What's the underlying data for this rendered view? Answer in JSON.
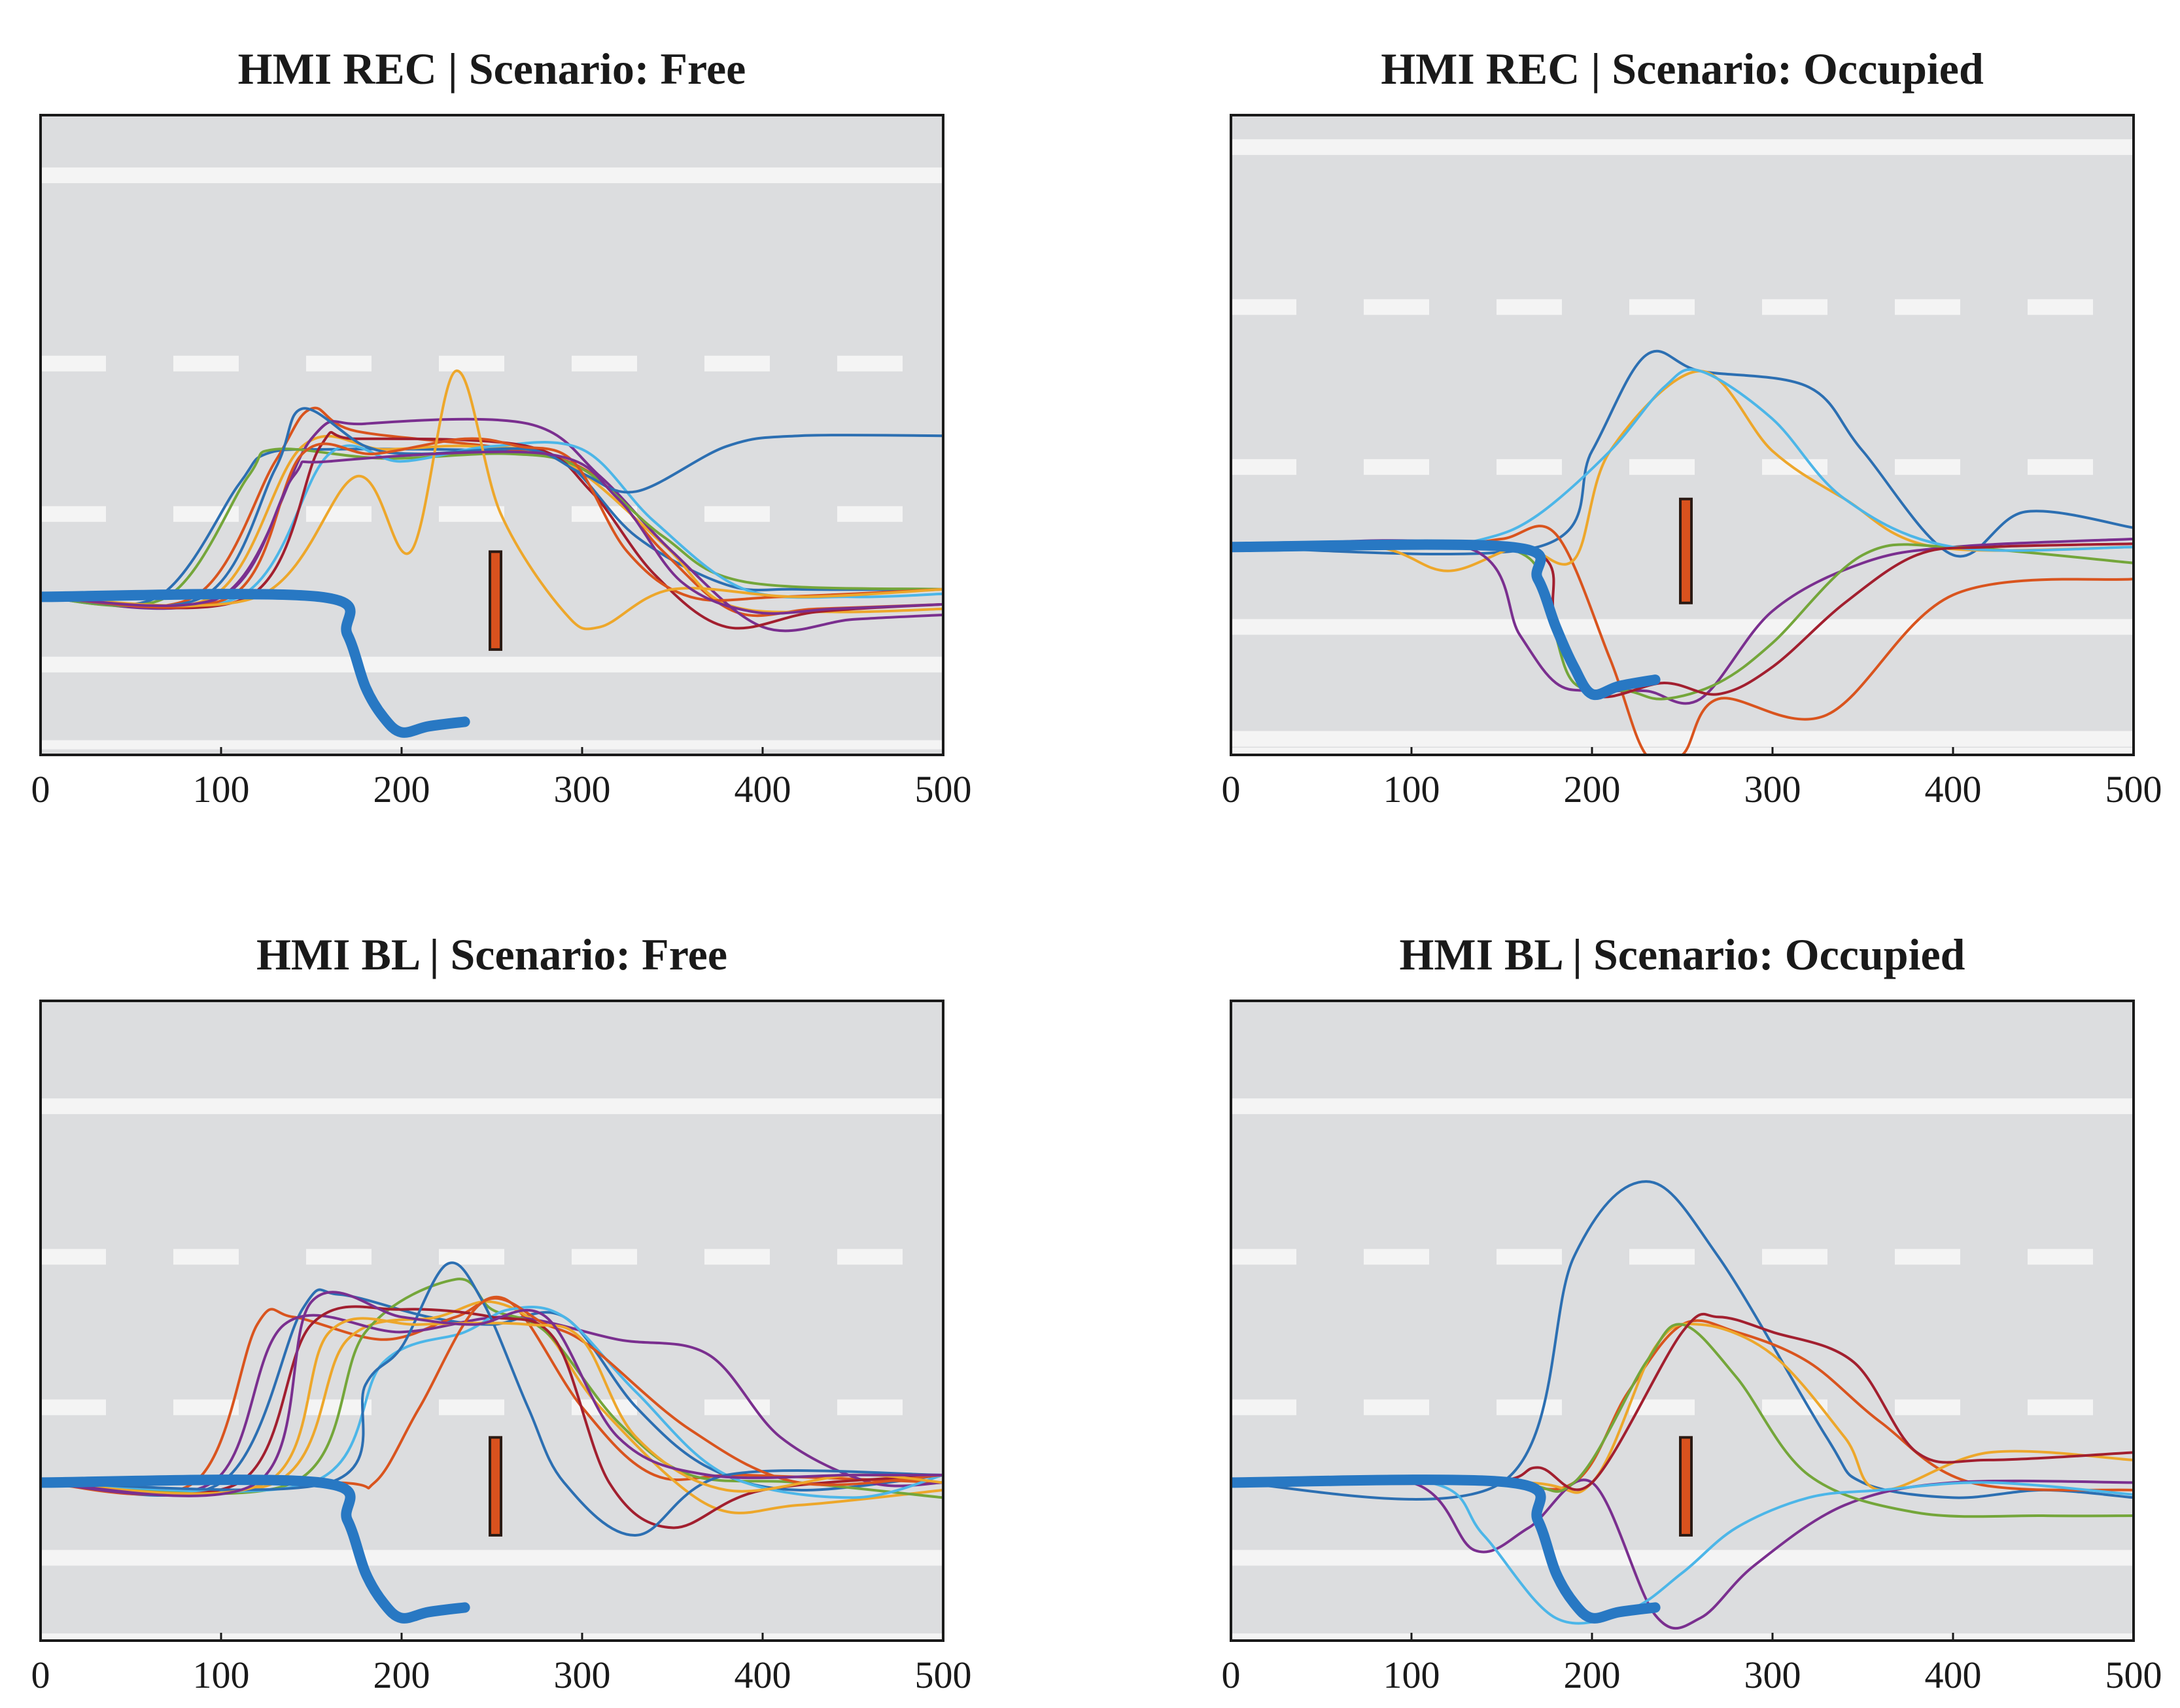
{
  "colors": {
    "road": "#dcdddf",
    "marking": "#f4f4f4",
    "frame": "#1a1a1a",
    "ego": "#2878c3",
    "obstacle_fill": "#d9521e",
    "obstacle_edge": "#2a1a14",
    "palette": [
      "#2c6fb2",
      "#d9541e",
      "#eda72b",
      "#7a2f8f",
      "#74a63a",
      "#4cb6e8",
      "#a21f2f"
    ]
  },
  "chart_data": [
    {
      "type": "line",
      "title": "HMI REC | Scenario: Free",
      "xlim": [
        0,
        500
      ],
      "ylim": [
        -1.05,
        3.2
      ],
      "xticks": [
        "0",
        "100",
        "200",
        "300",
        "400",
        "500"
      ],
      "lane_markings": {
        "solid": [
          -0.45,
          2.8
        ],
        "dashed": [
          0.55,
          1.55
        ],
        "bottom_edge": -1.0
      },
      "obstacle": {
        "x": 252,
        "y": [
          -0.35,
          0.3
        ]
      },
      "ego": {
        "x": [
          0,
          155,
          170,
          180,
          190,
          200,
          215,
          235
        ],
        "y": [
          0,
          0,
          -0.25,
          -0.6,
          -0.8,
          -0.9,
          -0.86,
          -0.83
        ]
      },
      "series": [
        {
          "x": [
            0,
            65,
            110,
            125,
            160,
            250,
            290,
            330,
            380,
            420,
            500
          ],
          "y": [
            0,
            0,
            0.75,
            0.95,
            0.98,
            0.97,
            0.9,
            0.4,
            0.08,
            0.05,
            0.05
          ]
        },
        {
          "x": [
            0,
            85,
            130,
            150,
            175,
            260,
            305,
            345,
            385,
            430,
            500
          ],
          "y": [
            0,
            0,
            0.9,
            1.25,
            1.1,
            0.98,
            0.82,
            0.3,
            -0.1,
            -0.08,
            -0.05
          ]
        },
        {
          "x": [
            0,
            95,
            145,
            190,
            240,
            290,
            345,
            380,
            440,
            500
          ],
          "y": [
            0,
            0,
            1.0,
            0.98,
            1.0,
            0.9,
            0.35,
            -0.05,
            -0.1,
            -0.08
          ]
        },
        {
          "x": [
            0,
            100,
            150,
            180,
            270,
            310,
            350,
            400,
            450,
            500
          ],
          "y": [
            0,
            0,
            1.05,
            1.15,
            1.15,
            0.8,
            0.3,
            -0.2,
            -0.15,
            -0.12
          ]
        },
        {
          "x": [
            0,
            70,
            115,
            130,
            190,
            260,
            300,
            345,
            390,
            500
          ],
          "y": [
            0,
            0,
            0.8,
            0.98,
            0.92,
            0.95,
            0.85,
            0.4,
            0.1,
            0.05
          ]
        },
        {
          "x": [
            0,
            110,
            160,
            200,
            250,
            300,
            340,
            390,
            450,
            500
          ],
          "y": [
            0,
            0,
            0.95,
            0.9,
            1.0,
            0.98,
            0.5,
            0.05,
            0.0,
            0.02
          ]
        },
        {
          "x": [
            0,
            115,
            155,
            175,
            270,
            305,
            340,
            380,
            430,
            500
          ],
          "y": [
            0,
            0,
            1.0,
            1.05,
            1.0,
            0.7,
            0.15,
            -0.2,
            -0.1,
            -0.05
          ]
        },
        {
          "x": [
            0,
            90,
            130,
            145,
            180,
            210,
            270,
            300,
            330,
            380,
            420,
            500
          ],
          "y": [
            0,
            0,
            0.85,
            1.25,
            1.0,
            0.95,
            0.98,
            0.82,
            0.7,
            1.0,
            1.07,
            1.07
          ]
        },
        {
          "x": [
            0,
            105,
            145,
            185,
            235,
            265,
            295,
            325,
            360,
            410,
            500
          ],
          "y": [
            0,
            0,
            0.95,
            0.95,
            1.05,
            1.0,
            0.9,
            0.3,
            0.0,
            0.0,
            0.05
          ]
        },
        {
          "x": [
            0,
            120,
            175,
            205,
            230,
            255,
            290,
            310,
            350,
            420,
            500
          ],
          "y": [
            0,
            0,
            0.8,
            0.3,
            1.5,
            0.55,
            -0.1,
            -0.2,
            0.05,
            0.0,
            0.05
          ]
        },
        {
          "x": [
            0,
            100,
            140,
            160,
            280,
            320,
            355,
            395,
            440,
            500
          ],
          "y": [
            0,
            0,
            0.8,
            0.9,
            0.95,
            0.65,
            0.1,
            -0.1,
            -0.08,
            -0.05
          ]
        }
      ]
    },
    {
      "type": "line",
      "title": "HMI REC | Scenario: Occupied",
      "xlim": [
        0,
        500
      ],
      "ylim": [
        -1.3,
        2.7
      ],
      "xticks": [
        "0",
        "100",
        "200",
        "300",
        "400",
        "500"
      ],
      "lane_markings": {
        "solid": [
          -0.5,
          -1.2,
          2.5
        ],
        "dashed": [
          0.5,
          1.5
        ],
        "bottom_edge": -1.3
      },
      "obstacle": {
        "x": 252,
        "y": [
          -0.35,
          0.3
        ]
      },
      "ego": {
        "x": [
          0,
          155,
          170,
          180,
          190,
          200,
          215,
          235
        ],
        "y": [
          0,
          0,
          -0.2,
          -0.5,
          -0.75,
          -0.92,
          -0.87,
          -0.83
        ]
      },
      "series": [
        {
          "x": [
            0,
            170,
            200,
            230,
            260,
            320,
            350,
            400,
            440,
            500
          ],
          "y": [
            0,
            0,
            0.6,
            1.2,
            1.1,
            1.0,
            0.6,
            -0.05,
            0.22,
            0.12
          ]
        },
        {
          "x": [
            0,
            110,
            150,
            180,
            210,
            230,
            250,
            270,
            330,
            400,
            500
          ],
          "y": [
            0,
            0,
            0.05,
            0.08,
            -0.7,
            -1.3,
            -1.3,
            -0.95,
            -1.05,
            -0.3,
            -0.2
          ]
        },
        {
          "x": [
            0,
            80,
            120,
            160,
            190,
            210,
            260,
            300,
            340,
            390,
            500
          ],
          "y": [
            0,
            0,
            -0.15,
            0.0,
            -0.08,
            0.6,
            1.1,
            0.6,
            0.3,
            0.0,
            0.0
          ]
        },
        {
          "x": [
            0,
            130,
            160,
            180,
            200,
            230,
            260,
            300,
            350,
            400,
            500
          ],
          "y": [
            0,
            0,
            -0.55,
            -0.85,
            -0.9,
            -0.9,
            -0.95,
            -0.4,
            -0.1,
            0.0,
            0.05
          ]
        },
        {
          "x": [
            0,
            150,
            175,
            190,
            220,
            240,
            270,
            300,
            350,
            400,
            500
          ],
          "y": [
            0,
            0,
            -0.4,
            -0.85,
            -0.9,
            -0.95,
            -0.85,
            -0.6,
            -0.05,
            0.0,
            -0.1
          ]
        },
        {
          "x": [
            0,
            100,
            140,
            170,
            210,
            240,
            260,
            300,
            340,
            400,
            500
          ],
          "y": [
            0,
            0,
            0.05,
            0.2,
            0.6,
            1.0,
            1.1,
            0.8,
            0.3,
            0.0,
            0.0
          ]
        },
        {
          "x": [
            0,
            160,
            180,
            200,
            240,
            270,
            300,
            340,
            380,
            420,
            500
          ],
          "y": [
            0,
            0,
            -0.45,
            -0.92,
            -0.85,
            -0.92,
            -0.75,
            -0.35,
            -0.05,
            0.0,
            0.02
          ]
        }
      ]
    },
    {
      "type": "line",
      "title": "HMI BL | Scenario: Free",
      "xlim": [
        0,
        500
      ],
      "ylim": [
        -1.05,
        3.2
      ],
      "xticks": [
        "0",
        "100",
        "200",
        "300",
        "400",
        "500"
      ],
      "lane_markings": {
        "solid": [
          -0.5,
          2.5
        ],
        "dashed": [
          0.5,
          1.5
        ],
        "bottom_edge": -1.05
      },
      "obstacle": {
        "x": 252,
        "y": [
          -0.35,
          0.3
        ]
      },
      "ego": {
        "x": [
          0,
          155,
          170,
          180,
          190,
          200,
          215,
          235
        ],
        "y": [
          0,
          0,
          -0.25,
          -0.6,
          -0.8,
          -0.9,
          -0.86,
          -0.83
        ]
      },
      "series": [
        {
          "x": [
            0,
            100,
            145,
            165,
            215,
            250,
            290,
            330,
            370,
            420,
            500
          ],
          "y": [
            0,
            0,
            1.15,
            1.25,
            1.1,
            1.05,
            1.1,
            0.5,
            0.1,
            -0.05,
            0.05
          ]
        },
        {
          "x": [
            0,
            85,
            120,
            140,
            190,
            230,
            260,
            300,
            340,
            390,
            500
          ],
          "y": [
            0,
            0,
            1.05,
            1.1,
            0.95,
            1.1,
            1.2,
            0.5,
            0.05,
            0.05,
            0.0
          ]
        },
        {
          "x": [
            0,
            130,
            170,
            220,
            250,
            280,
            310,
            370,
            420,
            500
          ],
          "y": [
            0,
            0,
            0.95,
            1.1,
            1.2,
            1.0,
            0.5,
            -0.15,
            -0.15,
            -0.05
          ]
        },
        {
          "x": [
            0,
            95,
            135,
            200,
            260,
            320,
            370,
            410,
            460,
            500
          ],
          "y": [
            0,
            0,
            1.05,
            1.0,
            1.1,
            0.95,
            0.85,
            0.3,
            0.0,
            0.0
          ]
        },
        {
          "x": [
            0,
            140,
            180,
            230,
            250,
            280,
            320,
            360,
            420,
            500
          ],
          "y": [
            0,
            0,
            1.0,
            1.35,
            1.15,
            1.0,
            0.4,
            0.05,
            0.0,
            -0.1
          ]
        },
        {
          "x": [
            0,
            150,
            190,
            235,
            260,
            290,
            330,
            380,
            450,
            500
          ],
          "y": [
            0,
            0,
            0.8,
            1.0,
            1.15,
            1.1,
            0.6,
            0.05,
            -0.1,
            0.05
          ]
        },
        {
          "x": [
            0,
            110,
            150,
            200,
            250,
            285,
            315,
            350,
            400,
            500
          ],
          "y": [
            0,
            0,
            1.05,
            1.15,
            1.1,
            0.95,
            0.0,
            -0.3,
            -0.05,
            0.05
          ]
        },
        {
          "x": [
            0,
            160,
            180,
            200,
            225,
            245,
            270,
            290,
            330,
            380,
            500
          ],
          "y": [
            0,
            0,
            0.65,
            0.9,
            1.45,
            1.2,
            0.5,
            0.0,
            -0.35,
            0.05,
            0.05
          ]
        },
        {
          "x": [
            0,
            160,
            185,
            210,
            245,
            280,
            305,
            360,
            420,
            500
          ],
          "y": [
            0,
            0,
            0.0,
            0.5,
            1.2,
            1.05,
            0.9,
            0.35,
            0.0,
            0.05
          ]
        },
        {
          "x": [
            0,
            125,
            160,
            210,
            270,
            300,
            330,
            380,
            450,
            500
          ],
          "y": [
            0,
            0,
            1.0,
            1.05,
            1.05,
            0.95,
            0.3,
            -0.05,
            0.05,
            0.0
          ]
        },
        {
          "x": [
            0,
            120,
            150,
            200,
            240,
            280,
            320,
            370,
            450,
            500
          ],
          "y": [
            0,
            0,
            1.2,
            1.1,
            1.05,
            1.1,
            0.3,
            0.05,
            0.05,
            0.05
          ]
        }
      ]
    },
    {
      "type": "line",
      "title": "HMI BL | Scenario: Occupied",
      "xlim": [
        0,
        500
      ],
      "ylim": [
        -1.05,
        3.2
      ],
      "xticks": [
        "0",
        "100",
        "200",
        "300",
        "400",
        "500"
      ],
      "lane_markings": {
        "solid": [
          -0.5,
          2.5
        ],
        "dashed": [
          0.5,
          1.5
        ],
        "bottom_edge": -1.05
      },
      "obstacle": {
        "x": 252,
        "y": [
          -0.35,
          0.3
        ]
      },
      "ego": {
        "x": [
          0,
          155,
          170,
          180,
          190,
          200,
          215,
          235
        ],
        "y": [
          0,
          0,
          -0.25,
          -0.6,
          -0.8,
          -0.9,
          -0.86,
          -0.83
        ]
      },
      "series": [
        {
          "x": [
            0,
            150,
            190,
            230,
            270,
            330,
            350,
            400,
            450,
            500
          ],
          "y": [
            0,
            0,
            1.5,
            2.0,
            1.5,
            0.3,
            0.0,
            -0.1,
            -0.05,
            -0.1
          ]
        },
        {
          "x": [
            0,
            140,
            190,
            220,
            250,
            280,
            320,
            360,
            410,
            500
          ],
          "y": [
            0,
            0,
            0.0,
            0.6,
            1.05,
            1.0,
            0.8,
            0.4,
            0.0,
            -0.05
          ]
        },
        {
          "x": [
            0,
            160,
            200,
            235,
            260,
            300,
            340,
            360,
            420,
            500
          ],
          "y": [
            0,
            0,
            0.0,
            0.9,
            1.05,
            0.85,
            0.3,
            -0.05,
            0.2,
            0.15
          ]
        },
        {
          "x": [
            0,
            100,
            135,
            165,
            200,
            235,
            260,
            290,
            340,
            400,
            500
          ],
          "y": [
            0,
            0,
            -0.45,
            -0.3,
            0.0,
            -0.88,
            -0.9,
            -0.55,
            -0.15,
            0.0,
            0.0
          ]
        },
        {
          "x": [
            0,
            150,
            190,
            230,
            250,
            280,
            320,
            380,
            450,
            500
          ],
          "y": [
            0,
            0,
            0.0,
            0.8,
            1.05,
            0.7,
            0.05,
            -0.2,
            -0.22,
            -0.22
          ]
        },
        {
          "x": [
            0,
            110,
            140,
            180,
            220,
            250,
            280,
            320,
            360,
            420,
            500
          ],
          "y": [
            0,
            0,
            -0.35,
            -0.9,
            -0.85,
            -0.6,
            -0.3,
            -0.1,
            -0.05,
            0.0,
            -0.08
          ]
        },
        {
          "x": [
            0,
            140,
            170,
            200,
            250,
            270,
            300,
            345,
            380,
            420,
            500
          ],
          "y": [
            0,
            0,
            0.1,
            0.0,
            1.0,
            1.1,
            1.0,
            0.8,
            0.2,
            0.15,
            0.2
          ]
        }
      ]
    }
  ]
}
